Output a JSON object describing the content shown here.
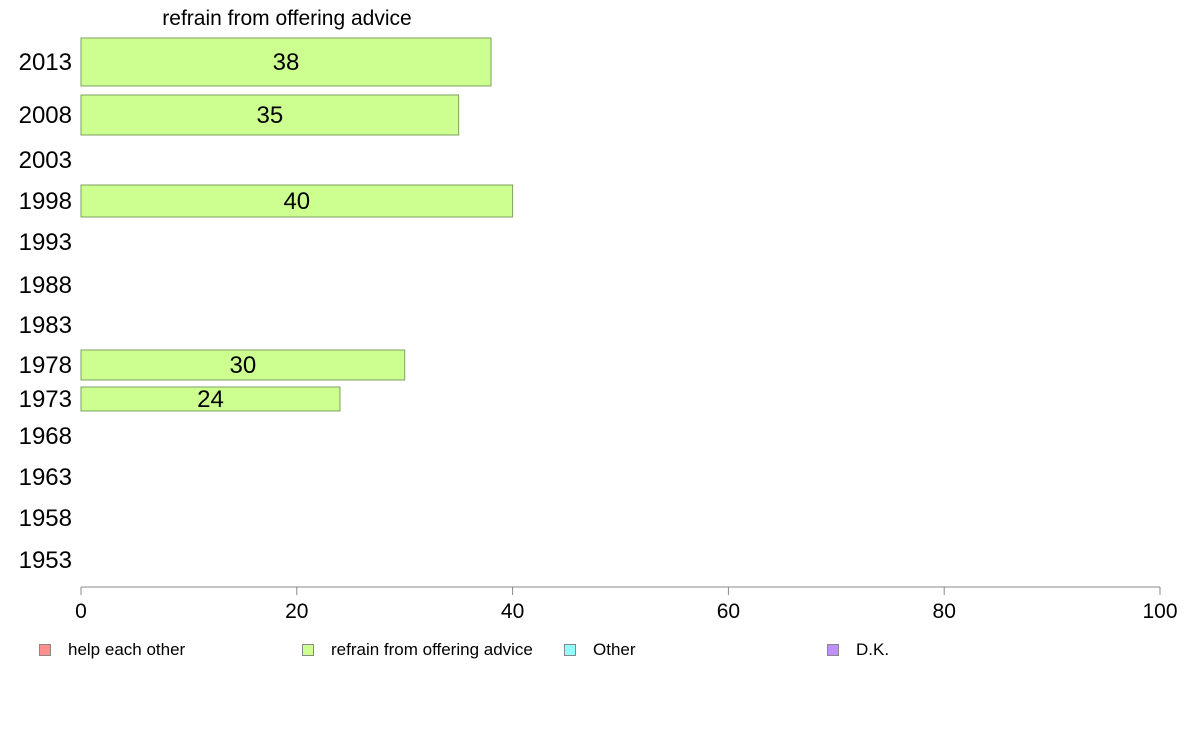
{
  "chart_data": {
    "type": "bar",
    "orientation": "horizontal",
    "title": "refrain from offering advice",
    "xlabel": "",
    "ylabel": "",
    "xlim": [
      0,
      100
    ],
    "xticks": [
      0,
      20,
      40,
      60,
      80,
      100
    ],
    "grid": false,
    "legend_position": "bottom",
    "categories": [
      "2013",
      "2008",
      "2003",
      "1998",
      "1993",
      "1988",
      "1983",
      "1978",
      "1973",
      "1968",
      "1963",
      "1958",
      "1953"
    ],
    "series": [
      {
        "name": "refrain from offering advice",
        "values": [
          38,
          35,
          null,
          40,
          null,
          null,
          null,
          30,
          24,
          null,
          null,
          null,
          null
        ]
      }
    ],
    "data_labels": [
      "38",
      "35",
      "",
      "40",
      "",
      "",
      "",
      "30",
      "24",
      "",
      "",
      "",
      ""
    ],
    "legend": [
      {
        "label": "help each other",
        "color": "#ff8f8f"
      },
      {
        "label": "refrain from offering advice",
        "color": "#ccff8f"
      },
      {
        "label": "Other",
        "color": "#8fffff"
      },
      {
        "label": "D.K.",
        "color": "#bf8fff"
      }
    ],
    "bar_color": "#ccff8f",
    "bar_border_color": "#7fa060"
  }
}
